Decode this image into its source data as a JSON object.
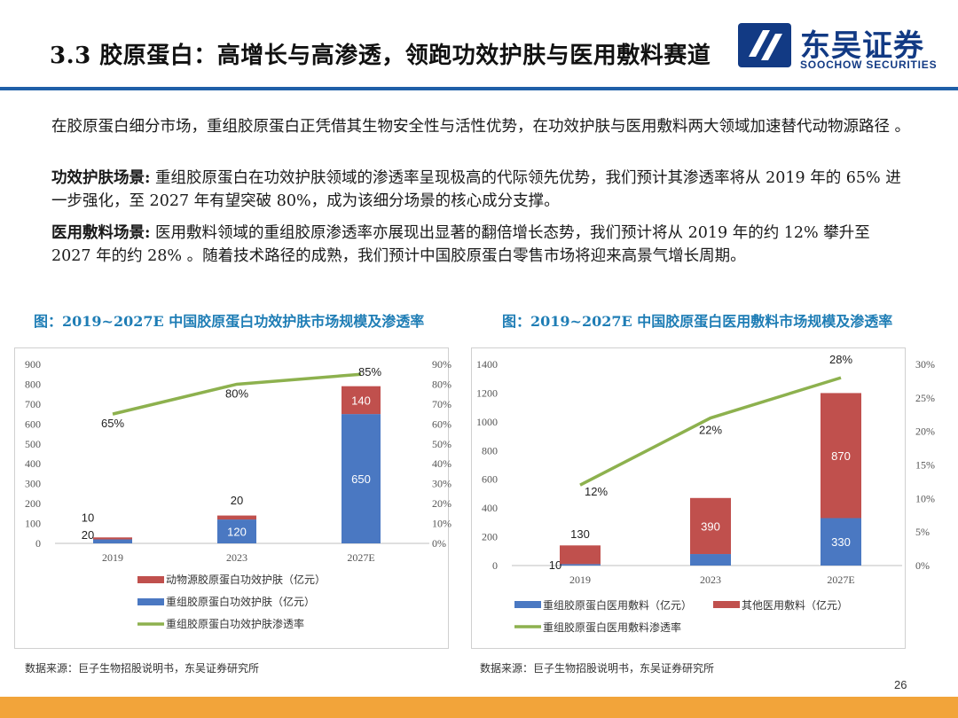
{
  "header": {
    "title": "3.3 胶原蛋白：高增长与高渗透，领跑功效护肤与医用敷料赛道",
    "logo_cn": "东吴证券",
    "logo_en": "SOOCHOW SECURITIES",
    "accent_color": "#1f5fa8"
  },
  "paragraphs": [
    {
      "lead": "",
      "text": "在胶原蛋白细分市场，重组胶原蛋白正凭借其生物安全性与活性优势，在功效护肤与医用敷料两大领域加速替代动物源路径 。"
    },
    {
      "lead": "功效护肤场景:",
      "text": "  重组胶原蛋白在功效护肤领域的渗透率呈现极高的代际领先优势，我们预计其渗透率将从 2019 年的 65% 进一步强化，至 2027 年有望突破 80%，成为该细分场景的核心成分支撑。"
    },
    {
      "lead": "医用敷料场景:",
      "text": "  医用敷料领域的重组胶原渗透率亦展现出显著的翻倍增长态势，我们预计将从 2019 年的约 12% 攀升至 2027 年的约 28% 。随着技术路径的成熟，我们预计中国胶原蛋白零售市场将迎来高景气增长周期。"
    }
  ],
  "page_number": "26",
  "chart_data": [
    {
      "type": "bar",
      "title": "图：2019~2027E 中国胶原蛋白功效护肤市场规模及渗透率",
      "categories": [
        "2019",
        "2023",
        "2027E"
      ],
      "stacked": true,
      "series": [
        {
          "name": "重组胶原蛋白功效护肤（亿元）",
          "values": [
            20,
            120,
            650
          ],
          "color": "#4a78c2",
          "axis": "left",
          "data_labels": [
            "20",
            "120",
            "650"
          ]
        },
        {
          "name": "动物源胶原蛋白功效护肤（亿元）",
          "values": [
            10,
            20,
            140
          ],
          "color": "#c0504d",
          "axis": "left",
          "data_labels": [
            "10",
            "20",
            "140"
          ]
        },
        {
          "name": "重组胶原蛋白功效护肤渗透率",
          "type": "line",
          "values": [
            0.65,
            0.8,
            0.85
          ],
          "color": "#8db14e",
          "axis": "right",
          "data_labels": [
            "65%",
            "80%",
            "85%"
          ]
        }
      ],
      "left_axis": {
        "min": 0,
        "max": 900,
        "step": 100,
        "ticks": [
          "0",
          "100",
          "200",
          "300",
          "400",
          "500",
          "600",
          "700",
          "800",
          "900"
        ]
      },
      "right_axis": {
        "min": 0,
        "max": 0.9,
        "ticks": [
          "0%",
          "10%",
          "20%",
          "30%",
          "40%",
          "50%",
          "60%",
          "70%",
          "80%",
          "90%"
        ]
      },
      "legend_position": "bottom",
      "grid": false,
      "source": "数据来源：巨子生物招股说明书，东吴证券研究所"
    },
    {
      "type": "bar",
      "title": "图：2019~2027E 中国胶原蛋白医用敷料市场规模及渗透率",
      "categories": [
        "2019",
        "2023",
        "2027E"
      ],
      "stacked": true,
      "series": [
        {
          "name": "重组胶原蛋白医用敷料（亿元）",
          "values": [
            10,
            80,
            330
          ],
          "color": "#4a78c2",
          "axis": "left",
          "data_labels": [
            "10",
            "80",
            "330"
          ]
        },
        {
          "name": "其他医用敷料（亿元）",
          "values": [
            130,
            390,
            870
          ],
          "color": "#c0504d",
          "axis": "left",
          "data_labels": [
            "130",
            "390",
            "870"
          ]
        },
        {
          "name": "重组胶原蛋白医用敷料渗透率",
          "type": "line",
          "values": [
            0.12,
            0.22,
            0.28
          ],
          "color": "#8db14e",
          "axis": "right",
          "data_labels": [
            "12%",
            "22%",
            "28%"
          ]
        }
      ],
      "left_axis": {
        "min": 0,
        "max": 1400,
        "step": 200,
        "ticks": [
          "0",
          "200",
          "400",
          "600",
          "800",
          "1000",
          "1200",
          "1400"
        ]
      },
      "right_axis": {
        "min": 0,
        "max": 0.3,
        "ticks": [
          "0%",
          "5%",
          "10%",
          "15%",
          "20%",
          "25%",
          "30%"
        ]
      },
      "legend_position": "bottom",
      "grid": false,
      "source": "数据来源：巨子生物招股说明书，东吴证券研究所"
    }
  ]
}
